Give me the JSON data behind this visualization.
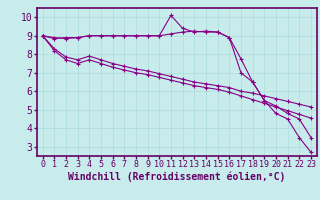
{
  "background_color": "#c8ecec",
  "grid_color": "#aadddd",
  "line_color": "#880088",
  "marker": "+",
  "xlabel": "Windchill (Refroidissement éolien,°C)",
  "xlim": [
    -0.5,
    23.5
  ],
  "ylim": [
    2.5,
    10.5
  ],
  "xticks": [
    0,
    1,
    2,
    3,
    4,
    5,
    6,
    7,
    8,
    9,
    10,
    11,
    12,
    13,
    14,
    15,
    16,
    17,
    18,
    19,
    20,
    21,
    22,
    23
  ],
  "yticks": [
    3,
    4,
    5,
    6,
    7,
    8,
    9,
    10
  ],
  "line1_x": [
    0,
    1,
    2,
    3,
    4,
    5,
    6,
    7,
    8,
    9,
    10,
    11,
    12,
    13,
    14,
    15,
    16,
    17,
    18,
    19,
    20,
    21,
    22,
    23
  ],
  "line1_y": [
    9.0,
    8.9,
    8.85,
    8.9,
    9.0,
    9.0,
    9.0,
    9.0,
    9.0,
    9.0,
    9.0,
    10.1,
    9.4,
    9.2,
    9.25,
    9.2,
    8.9,
    7.75,
    6.5,
    5.5,
    4.8,
    4.5,
    3.5,
    2.7
  ],
  "line2_x": [
    0,
    1,
    2,
    3,
    4,
    5,
    6,
    7,
    8,
    9,
    10,
    11,
    12,
    13,
    14,
    15,
    16,
    17,
    18,
    19,
    20,
    21,
    22,
    23
  ],
  "line2_y": [
    9.0,
    8.85,
    8.9,
    8.9,
    9.0,
    9.0,
    9.0,
    9.0,
    9.0,
    9.0,
    9.0,
    9.1,
    9.2,
    9.25,
    9.2,
    9.2,
    8.9,
    7.0,
    6.5,
    5.5,
    5.2,
    4.8,
    4.5,
    3.5
  ],
  "line3_x": [
    0,
    1,
    2,
    3,
    4,
    5,
    6,
    7,
    8,
    9,
    10,
    11,
    12,
    13,
    14,
    15,
    16,
    17,
    18,
    19,
    20,
    21,
    22,
    23
  ],
  "line3_y": [
    9.0,
    8.3,
    7.85,
    7.7,
    7.9,
    7.7,
    7.5,
    7.35,
    7.2,
    7.1,
    6.95,
    6.8,
    6.65,
    6.5,
    6.4,
    6.3,
    6.2,
    6.0,
    5.9,
    5.75,
    5.6,
    5.45,
    5.3,
    5.15
  ],
  "line4_x": [
    0,
    1,
    2,
    3,
    4,
    5,
    6,
    7,
    8,
    9,
    10,
    11,
    12,
    13,
    14,
    15,
    16,
    17,
    18,
    19,
    20,
    21,
    22,
    23
  ],
  "line4_y": [
    9.0,
    8.2,
    7.7,
    7.5,
    7.7,
    7.5,
    7.3,
    7.15,
    7.0,
    6.9,
    6.75,
    6.6,
    6.45,
    6.3,
    6.2,
    6.1,
    5.95,
    5.75,
    5.55,
    5.35,
    5.15,
    4.95,
    4.75,
    4.55
  ],
  "spine_color": "#660066",
  "tick_color": "#660066",
  "label_color": "#660066",
  "font_size_tick": 6,
  "font_size_xlabel": 7
}
